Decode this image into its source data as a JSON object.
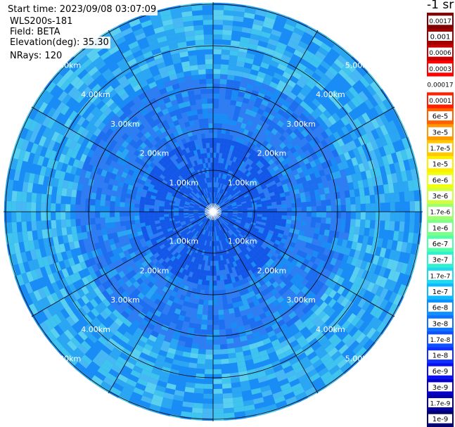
{
  "header": {
    "start_time": "Start time: 2023/09/08 03:07:09",
    "instrument": "WLS200s-181",
    "field": "Field: BETA",
    "elevation": "Elevation(deg): 35.30",
    "nrays": "NRays: 120"
  },
  "ring_labels": [
    "1.00km",
    "2.00km",
    "3.00km",
    "4.00km",
    "5.00km"
  ],
  "colorbar": {
    "unit": "-1 sr",
    "ticks": [
      "0.0017",
      "0.001",
      "0.0006",
      "0.0003",
      "0.00017",
      "0.0001",
      "6e-5",
      "3e-5",
      "1.7e-5",
      "1e-5",
      "6e-6",
      "3e-6",
      "1.7e-6",
      "1e-6",
      "6e-7",
      "3e-7",
      "1.7e-7",
      "1e-7",
      "6e-8",
      "3e-8",
      "1.7e-8",
      "1e-8",
      "6e-9",
      "3e-9",
      "1.7e-9",
      "1e-9"
    ],
    "colors": [
      "#7f0000",
      "#a00000",
      "#c80000",
      "#ff0000",
      "#ffffff",
      "#ff2000",
      "#ff6000",
      "#ff9a00",
      "#ffc800",
      "#ffee00",
      "#f0ff10",
      "#d0ff40",
      "#a0ff70",
      "#7aff8a",
      "#50ffa8",
      "#30f0d0",
      "#20d8f0",
      "#10b8ff",
      "#0f90ff",
      "#1070ff",
      "#1050ff",
      "#1030ff",
      "#0a10f0",
      "#0800c8",
      "#0500a0",
      "#030070"
    ]
  }
}
